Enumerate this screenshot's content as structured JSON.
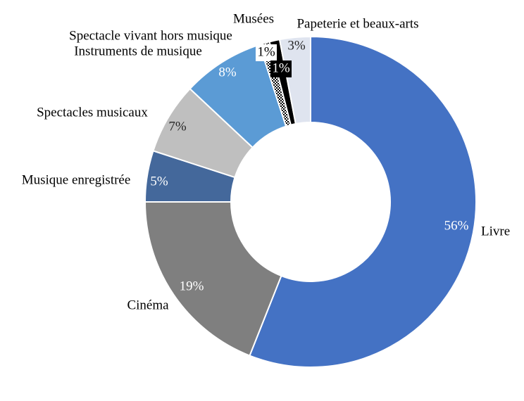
{
  "chart_data": {
    "type": "donut",
    "categories": [
      "Livre",
      "Cinéma",
      "Musique enregistrée",
      "Spectacles musicaux",
      "Instruments de musique",
      "Spectacle vivant hors musique",
      "Musées",
      "Papeterie et beaux-arts"
    ],
    "values": [
      56,
      19,
      5,
      7,
      8,
      1,
      1,
      3
    ],
    "value_labels": [
      "56%",
      "19%",
      "5%",
      "7%",
      "8%",
      "1%",
      "1%",
      "3%"
    ],
    "colors": [
      "#4472c4",
      "#7f7f7f",
      "#44689b",
      "#bfbfbf",
      "#5b9bd5",
      "#ffffff",
      "#000000",
      "#dfe4ef"
    ],
    "patterns": [
      null,
      null,
      null,
      null,
      null,
      "checker",
      null,
      null
    ]
  }
}
